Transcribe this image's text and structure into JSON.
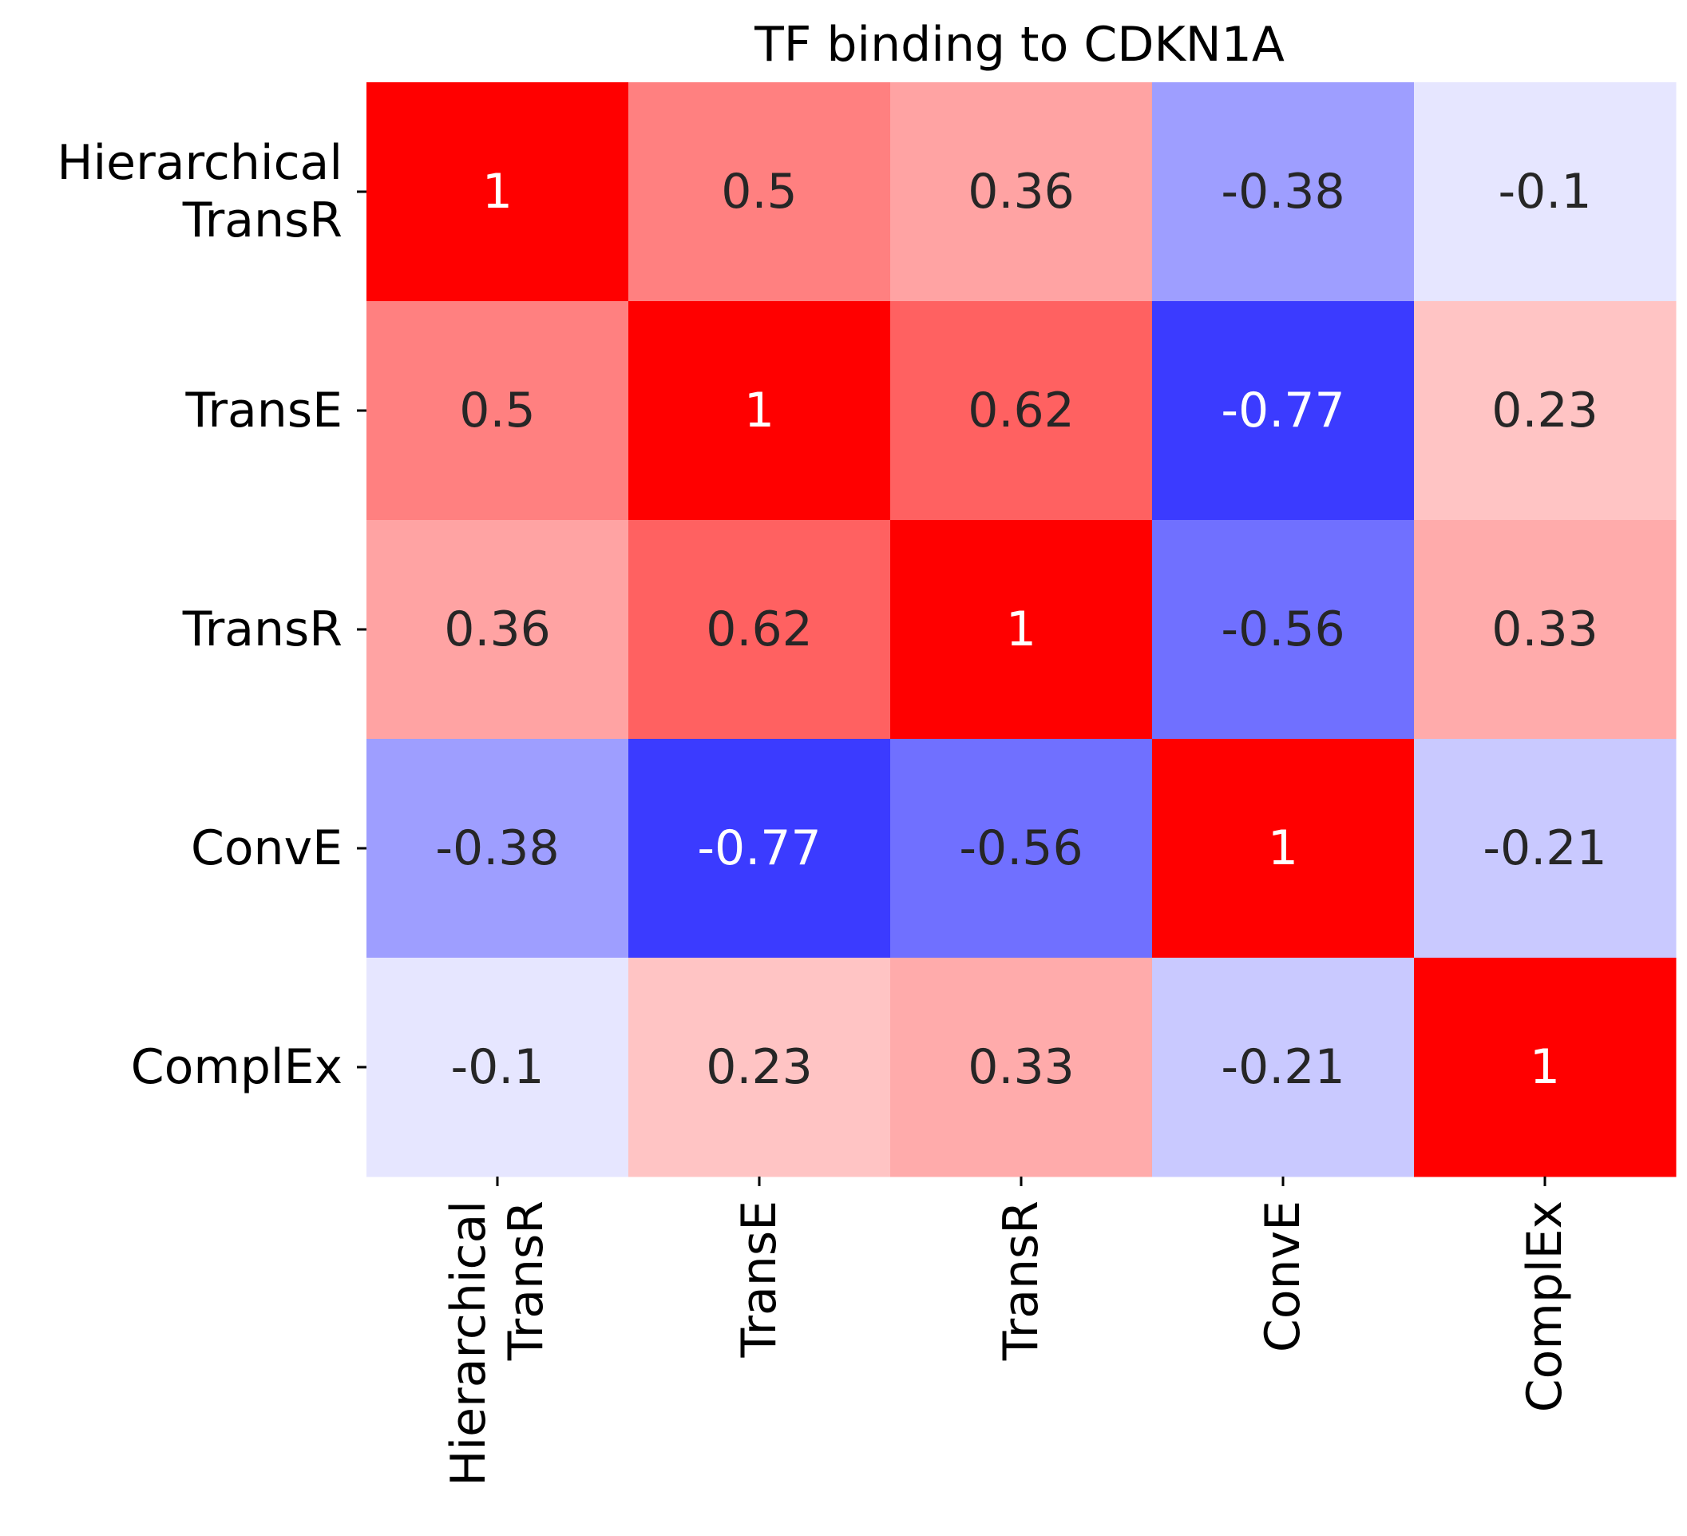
{
  "chart_data": {
    "type": "heatmap",
    "title": "TF binding to CDKN1A",
    "xlabel": "",
    "ylabel": "",
    "row_labels": [
      [
        "Hierarchical",
        "TransR"
      ],
      [
        "TransE"
      ],
      [
        "TransR"
      ],
      [
        "ConvE"
      ],
      [
        "ComplEx"
      ]
    ],
    "col_labels": [
      [
        "Hierarchical",
        "TransR"
      ],
      [
        "TransE"
      ],
      [
        "TransR"
      ],
      [
        "ConvE"
      ],
      [
        "ComplEx"
      ]
    ],
    "values": [
      [
        1,
        0.5,
        0.36,
        -0.38,
        -0.1
      ],
      [
        0.5,
        1,
        0.62,
        -0.77,
        0.23
      ],
      [
        0.36,
        0.62,
        1,
        -0.56,
        0.33
      ],
      [
        -0.38,
        -0.77,
        -0.56,
        1,
        -0.21
      ],
      [
        -0.1,
        0.23,
        0.33,
        -0.21,
        1
      ]
    ],
    "value_labels": [
      [
        "1",
        "0.5",
        "0.36",
        "-0.38",
        "-0.1"
      ],
      [
        "0.5",
        "1",
        "0.62",
        "-0.77",
        "0.23"
      ],
      [
        "0.36",
        "0.62",
        "1",
        "-0.56",
        "0.33"
      ],
      [
        "-0.38",
        "-0.77",
        "-0.56",
        "1",
        "-0.21"
      ],
      [
        "-0.1",
        "0.23",
        "0.33",
        "-0.21",
        "1"
      ]
    ],
    "colormap": "bwr",
    "vmin": -1,
    "vmax": 1,
    "colors": {
      "negative_end": "#0000ff",
      "midpoint": "#ffffff",
      "positive_end": "#ff0000",
      "text_dark": "#262626",
      "text_light": "#ffffff"
    },
    "colorbar": false,
    "grid": false
  }
}
